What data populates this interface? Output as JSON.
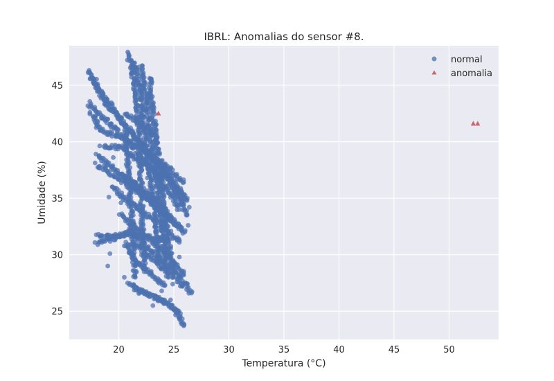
{
  "chart_data": {
    "type": "scatter",
    "title": "IBRL: Anomalias do sensor #8.",
    "xlabel": "Temperatura (°C)",
    "ylabel": "Umidade (%)",
    "xlim": [
      15.5,
      54.5
    ],
    "ylim": [
      22.5,
      48.5
    ],
    "xticks": [
      20,
      25,
      30,
      35,
      40,
      45,
      50
    ],
    "yticks": [
      25,
      30,
      35,
      40,
      45
    ],
    "grid": true,
    "legend_position": "top-right",
    "colors": {
      "normal": "#4c72b0",
      "anomalia": "#c44e52",
      "plot_bg": "#eaeaf2",
      "grid": "#ffffff"
    },
    "series": [
      {
        "name": "normal",
        "marker": "circle",
        "color": "#4c72b0",
        "segments": [
          [
            [
              17.3,
              46.3
            ],
            [
              18.5,
              44.2
            ],
            [
              20.2,
              42.0
            ],
            [
              22.4,
              39.3
            ],
            [
              24.2,
              37.3
            ],
            [
              25.8,
              34.5
            ]
          ],
          [
            [
              17.5,
              45.7
            ],
            [
              18.8,
              43.5
            ],
            [
              20.6,
              41.5
            ],
            [
              22.7,
              39.0
            ],
            [
              24.8,
              36.6
            ],
            [
              25.9,
              34.9
            ]
          ],
          [
            [
              17.2,
              43.4
            ],
            [
              19.0,
              41.8
            ],
            [
              21.0,
              39.8
            ],
            [
              23.0,
              37.6
            ],
            [
              24.6,
              35.5
            ],
            [
              25.5,
              34.0
            ]
          ],
          [
            [
              17.5,
              42.6
            ],
            [
              18.3,
              41.0
            ],
            [
              20.0,
              40.5
            ]
          ],
          [
            [
              18.0,
              38.8
            ],
            [
              19.7,
              37.5
            ],
            [
              21.5,
              36.3
            ],
            [
              23.2,
              34.9
            ],
            [
              24.5,
              33.6
            ],
            [
              25.7,
              32.2
            ]
          ],
          [
            [
              18.0,
              38.0
            ],
            [
              19.9,
              36.8
            ],
            [
              21.8,
              35.6
            ],
            [
              23.5,
              34.1
            ],
            [
              24.9,
              32.9
            ]
          ],
          [
            [
              18.4,
              39.6
            ],
            [
              20.3,
              39.5
            ],
            [
              22.0,
              38.2
            ],
            [
              23.7,
              37.2
            ],
            [
              25.4,
              36.0
            ],
            [
              26.2,
              34.8
            ]
          ],
          [
            [
              19.8,
              40.6
            ],
            [
              21.8,
              39.6
            ],
            [
              24.0,
              38.1
            ],
            [
              25.9,
              36.4
            ]
          ],
          [
            [
              19.5,
              36.0
            ],
            [
              21.0,
              34.6
            ],
            [
              22.5,
              33.6
            ],
            [
              24.0,
              32.6
            ],
            [
              25.5,
              31.1
            ]
          ],
          [
            [
              20.3,
              37.2
            ],
            [
              21.6,
              35.9
            ],
            [
              23.3,
              34.6
            ],
            [
              24.8,
              33.1
            ],
            [
              26.0,
              32.0
            ]
          ],
          [
            [
              18.0,
              31.0
            ],
            [
              19.2,
              31.3
            ],
            [
              20.3,
              31.7
            ],
            [
              21.5,
              32.1
            ]
          ],
          [
            [
              18.0,
              31.7
            ],
            [
              19.4,
              31.6
            ],
            [
              20.8,
              31.8
            ],
            [
              22.5,
              31.6
            ],
            [
              24.5,
              31.3
            ]
          ],
          [
            [
              21.0,
              32.3
            ],
            [
              22.5,
              30.7
            ],
            [
              24.0,
              29.3
            ],
            [
              25.5,
              28.2
            ],
            [
              26.6,
              26.6
            ]
          ],
          [
            [
              21.5,
              31.2
            ],
            [
              22.8,
              29.8
            ],
            [
              24.5,
              28.5
            ],
            [
              25.8,
              27.2
            ]
          ],
          [
            [
              20.2,
              33.5
            ],
            [
              21.5,
              32.5
            ],
            [
              23.0,
              31.2
            ],
            [
              24.6,
              29.8
            ],
            [
              25.9,
              28.2
            ]
          ],
          [
            [
              20.5,
              31.0
            ],
            [
              21.8,
              29.2
            ],
            [
              23.0,
              28.2
            ],
            [
              24.2,
              27.3
            ]
          ],
          [
            [
              21.0,
              27.4
            ],
            [
              22.0,
              26.9
            ],
            [
              23.0,
              26.4
            ],
            [
              24.0,
              25.9
            ],
            [
              25.0,
              25.3
            ],
            [
              25.6,
              24.8
            ]
          ],
          [
            [
              21.3,
              27.1
            ],
            [
              22.4,
              26.5
            ],
            [
              23.6,
              26.1
            ],
            [
              24.8,
              25.5
            ]
          ],
          [
            [
              25.0,
              25.2
            ],
            [
              25.5,
              24.6
            ],
            [
              25.7,
              24.0
            ],
            [
              25.9,
              23.7
            ]
          ],
          [
            [
              20.8,
              47.8
            ],
            [
              21.2,
              46.5
            ],
            [
              21.6,
              44.0
            ],
            [
              21.8,
              41.5
            ],
            [
              21.9,
              39.0
            ],
            [
              22.0,
              36.5
            ],
            [
              22.1,
              34.0
            ],
            [
              22.2,
              31.0
            ],
            [
              22.3,
              28.5
            ]
          ],
          [
            [
              21.3,
              47.0
            ],
            [
              21.9,
              45.0
            ],
            [
              22.2,
              42.0
            ],
            [
              22.5,
              39.5
            ],
            [
              22.8,
              37.0
            ],
            [
              23.2,
              34.5
            ],
            [
              23.5,
              32.0
            ],
            [
              23.7,
              29.5
            ]
          ],
          [
            [
              22.0,
              46.7
            ],
            [
              22.4,
              44.5
            ],
            [
              22.7,
              42.0
            ],
            [
              23.1,
              39.0
            ],
            [
              23.5,
              36.0
            ],
            [
              23.8,
              33.5
            ],
            [
              24.1,
              31.0
            ],
            [
              24.5,
              28.0
            ]
          ],
          [
            [
              20.6,
              41.0
            ],
            [
              20.8,
              38.5
            ],
            [
              21.0,
              36.0
            ],
            [
              21.2,
              33.0
            ],
            [
              21.3,
              30.5
            ],
            [
              21.5,
              28.0
            ]
          ],
          [
            [
              22.8,
              45.7
            ],
            [
              23.0,
              43.5
            ],
            [
              23.3,
              41.0
            ],
            [
              23.6,
              38.5
            ],
            [
              23.9,
              36.0
            ],
            [
              24.2,
              33.5
            ],
            [
              24.5,
              31.0
            ],
            [
              25.0,
              28.5
            ]
          ],
          [
            [
              24.0,
              38.0
            ],
            [
              24.7,
              36.7
            ],
            [
              25.3,
              35.4
            ],
            [
              25.9,
              34.2
            ],
            [
              26.2,
              33.5
            ]
          ],
          [
            [
              20.6,
              42.5
            ],
            [
              21.6,
              41.9
            ],
            [
              22.6,
              41.1
            ],
            [
              23.4,
              40.2
            ]
          ]
        ],
        "points": [
          [
            18.3,
            41.0
          ],
          [
            19.0,
            42.0
          ],
          [
            19.1,
            35.1
          ],
          [
            19.2,
            30.1
          ],
          [
            19.4,
            36.0
          ],
          [
            19.0,
            29.0
          ],
          [
            20.2,
            34.6
          ],
          [
            20.8,
            34.5
          ],
          [
            20.5,
            28.0
          ],
          [
            20.8,
            27.5
          ],
          [
            19.5,
            38.6
          ],
          [
            21.2,
            30.0
          ],
          [
            23.9,
            26.8
          ],
          [
            24.7,
            26.0
          ],
          [
            25.3,
            25.1
          ],
          [
            24.2,
            28.5
          ],
          [
            23.1,
            25.5
          ],
          [
            26.3,
            32.6
          ],
          [
            25.5,
            29.8
          ],
          [
            24.9,
            27.4
          ],
          [
            23.3,
            33.5
          ],
          [
            22.6,
            36.8
          ],
          [
            26.0,
            35.0
          ],
          [
            26.4,
            34.2
          ]
        ]
      },
      {
        "name": "anomalia",
        "marker": "triangle",
        "color": "#c44e52",
        "points": [
          [
            23.6,
            42.5
          ],
          [
            52.2,
            41.6
          ],
          [
            52.6,
            41.6
          ]
        ]
      }
    ]
  }
}
